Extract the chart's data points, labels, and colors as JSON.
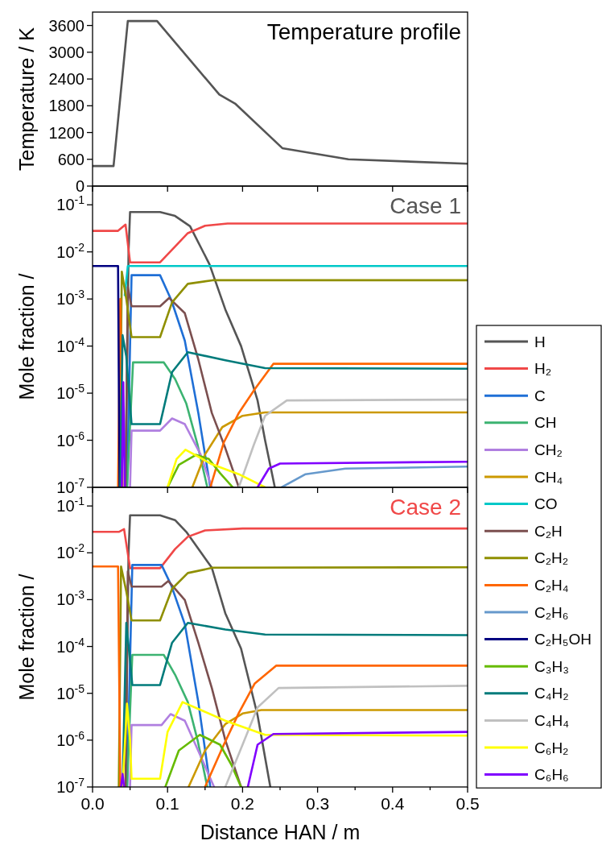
{
  "chart_data": [
    {
      "type": "line",
      "ylabel": "Temperature / K",
      "annotations": [
        "Temperature profile"
      ],
      "xlim": [
        0,
        0.5
      ],
      "xticks": [
        0,
        0.1,
        0.2,
        0.3,
        0.4,
        0.5
      ],
      "ylim": [
        0,
        3900
      ],
      "yticks": [
        0,
        600,
        1200,
        1800,
        2400,
        3000,
        3600
      ],
      "tick_labels": "y",
      "x": [
        0,
        0.028,
        0.047,
        0.086,
        0.169,
        0.19,
        0.253,
        0.341,
        0.5
      ],
      "series": [
        {
          "color": "#555555",
          "values": [
            450,
            450,
            3700,
            3700,
            2050,
            1850,
            850,
            600,
            500
          ]
        }
      ]
    },
    {
      "type": "line",
      "ylabel": "Mole fraction /",
      "annotations": [
        "Case 1"
      ],
      "log": "y",
      "legend": "right",
      "xlim": [
        0,
        0.5
      ],
      "xticks": [
        0,
        0.1,
        0.2,
        0.3,
        0.4,
        0.5
      ],
      "ylim": [
        1e-07,
        0.25
      ],
      "yticks": [
        {
          "value": 1e-07,
          "label": "10$^{-7}$"
        },
        {
          "value": 1e-06,
          "label": "10$^{-6}$"
        },
        {
          "value": 1e-05,
          "label": "10$^{-5}$"
        },
        {
          "value": 0.0001,
          "label": "10$^{-4}$"
        },
        {
          "value": 0.001,
          "label": "10$^{-3}$"
        },
        {
          "value": 0.01,
          "label": "10$^{-2}$"
        },
        {
          "value": 0.1,
          "label": "10$^{-1}$"
        }
      ],
      "tick_labels": "y",
      "series": [
        {
          "name": "H",
          "color": "#555555",
          "x": [
            0.044,
            0.048,
            0.05,
            0.09,
            0.11,
            0.13,
            0.156,
            0.177,
            0.198,
            0.22,
            0.23,
            0.243
          ],
          "values": [
            1e-07,
            0.01,
            0.07,
            0.07,
            0.058,
            0.035,
            0.0054,
            0.0006,
            0.0001,
            7e-06,
            1e-06,
            1e-07
          ]
        },
        {
          "name": "H₂",
          "color": "#f04848",
          "x": [
            0,
            0.034,
            0.044,
            0.05,
            0.09,
            0.11,
            0.127,
            0.15,
            0.18,
            0.5
          ],
          "values": [
            0.028,
            0.028,
            0.038,
            0.006,
            0.006,
            0.013,
            0.025,
            0.036,
            0.04,
            0.04
          ]
        },
        {
          "name": "C",
          "color": "#1f6fd6",
          "x": [
            0.046,
            0.052,
            0.09,
            0.105,
            0.123,
            0.141,
            0.157
          ],
          "values": [
            1e-07,
            0.0032,
            0.0032,
            0.00095,
            0.00013,
            3.8e-06,
            1e-07
          ]
        },
        {
          "name": "CH",
          "color": "#3cb371",
          "x": [
            0.046,
            0.054,
            0.095,
            0.11,
            0.125,
            0.14,
            0.153
          ],
          "values": [
            1e-07,
            4.5e-05,
            4.5e-05,
            2e-05,
            6e-06,
            8e-07,
            1e-07
          ]
        },
        {
          "name": "CH₂",
          "color": "#b07fe0",
          "x": [
            0.05,
            0.052,
            0.09,
            0.106,
            0.123,
            0.144,
            0.159
          ],
          "values": [
            1e-07,
            1.6e-06,
            1.6e-06,
            2.9e-06,
            2.2e-06,
            5e-07,
            1e-07
          ]
        },
        {
          "name": "CH₄",
          "color": "#cc9900",
          "x": [
            0.133,
            0.15,
            0.173,
            0.2,
            0.23,
            0.5
          ],
          "values": [
            1e-07,
            5e-07,
            1.9e-06,
            3.3e-06,
            3.9e-06,
            3.9e-06
          ]
        },
        {
          "name": "CO",
          "color": "#00c8c8",
          "x": [
            0.043,
            0.047,
            0.5
          ],
          "values": [
            0.0012,
            0.005,
            0.005
          ]
        },
        {
          "name": "C₂H",
          "color": "#7b4f4f",
          "x": [
            0.044,
            0.047,
            0.052,
            0.09,
            0.102,
            0.123,
            0.141,
            0.159,
            0.177,
            0.195
          ],
          "values": [
            1e-07,
            0.0018,
            0.0007,
            0.0007,
            0.00105,
            0.0005,
            5.2e-05,
            3.8e-06,
            6.8e-07,
            1e-07
          ]
        },
        {
          "name": "C₂H₂",
          "color": "#8f8f00",
          "x": [
            0.036,
            0.039,
            0.045,
            0.052,
            0.09,
            0.106,
            0.127,
            0.16,
            0.5
          ],
          "values": [
            1e-07,
            0.0038,
            0.001,
            0.000155,
            0.000155,
            0.00085,
            0.0021,
            0.0025,
            0.0025
          ]
        },
        {
          "name": "C₂H₄",
          "color": "#ff6600",
          "x": [
            0.034,
            0.037,
            0.04,
            0.1,
            0.157,
            0.175,
            0.195,
            0.216,
            0.241,
            0.5
          ],
          "values": [
            1e-07,
            0.001,
            1e-07,
            null,
            1e-07,
            9e-07,
            3.8e-06,
            1.2e-05,
            4.2e-05,
            4.2e-05
          ]
        },
        {
          "name": "C₂H₆",
          "color": "#6699cc",
          "x": [
            0.252,
            0.284,
            0.337,
            0.5
          ],
          "values": [
            1e-07,
            1.9e-07,
            2.5e-07,
            2.75e-07
          ]
        },
        {
          "name": "C₂H₅OH",
          "color": "#000080",
          "x": [
            0,
            0.034,
            0.036
          ],
          "values": [
            0.005,
            0.005,
            1e-07
          ]
        },
        {
          "name": "C₃H₃",
          "color": "#66bb00",
          "x": [
            0.1,
            0.115,
            0.138,
            0.155,
            0.17,
            0.187
          ],
          "values": [
            1e-07,
            3e-07,
            4.9e-07,
            4e-07,
            2e-07,
            1e-07
          ]
        },
        {
          "name": "C₄H₂",
          "color": "#007b7b",
          "x": [
            0.037,
            0.04,
            0.045,
            0.052,
            0.09,
            0.106,
            0.127,
            0.177,
            0.23,
            0.5
          ],
          "values": [
            1e-07,
            0.00017,
            6e-05,
            2.2e-06,
            2.2e-06,
            2.8e-05,
            7.4e-05,
            5e-05,
            3.4e-05,
            3.3e-05
          ]
        },
        {
          "name": "C₄H₄",
          "color": "#c0c0c0",
          "x": [
            0.195,
            0.215,
            0.23,
            0.259,
            0.5
          ],
          "values": [
            1e-07,
            8e-07,
            3.3e-06,
            7e-06,
            7.3e-06
          ]
        },
        {
          "name": "C₆H₂",
          "color": "#ffff00",
          "x": [
            0.1,
            0.112,
            0.124,
            0.159,
            0.195,
            0.23
          ],
          "values": [
            1e-07,
            4e-07,
            6.3e-07,
            3.1e-07,
            1.9e-07,
            1e-07
          ]
        },
        {
          "name": "C₆H₆",
          "color": "#8000ff",
          "x": [
            0.039,
            0.041,
            0.043,
            0.1,
            0.22,
            0.235,
            0.25,
            0.5
          ],
          "values": [
            1e-07,
            1.7e-05,
            1e-07,
            null,
            1e-07,
            2.5e-07,
            3.2e-07,
            3.5e-07
          ]
        }
      ]
    },
    {
      "type": "line",
      "ylabel": "Mole fraction /",
      "xlabel": "Distance HAN / m",
      "annotations": [
        "Case 2"
      ],
      "log": "y",
      "xlim": [
        0,
        0.5
      ],
      "xticks": [
        {
          "value": 0,
          "label": "0.0"
        },
        {
          "value": 0.05,
          "label": null
        },
        0.1,
        {
          "value": 0.15,
          "label": null
        },
        0.2,
        {
          "value": 0.25,
          "label": null
        },
        0.3,
        {
          "value": 0.35,
          "label": null
        },
        0.4,
        {
          "value": 0.45,
          "label": null
        },
        0.5
      ],
      "ylim": [
        1e-07,
        0.25
      ],
      "yticks": [
        {
          "value": 1e-07,
          "label": "10$^{-7}$"
        },
        {
          "value": 1e-06,
          "label": "10$^{-6}$"
        },
        {
          "value": 1e-05,
          "label": "10$^{-5}$"
        },
        {
          "value": 0.0001,
          "label": "10$^{-4}$"
        },
        {
          "value": 0.001,
          "label": "10$^{-3}$"
        },
        {
          "value": 0.01,
          "label": "10$^{-2}$"
        },
        {
          "value": 0.1,
          "label": "10$^{-1}$"
        }
      ],
      "series": [
        {
          "color": "#555555",
          "x": [
            0.044,
            0.048,
            0.05,
            0.09,
            0.11,
            0.125,
            0.159,
            0.177,
            0.198,
            0.22,
            0.237
          ],
          "values": [
            1e-07,
            0.01,
            0.063,
            0.063,
            0.05,
            0.028,
            0.0048,
            0.00051,
            9e-05,
            3.4e-06,
            1e-07
          ]
        },
        {
          "color": "#f04848",
          "x": [
            0,
            0.035,
            0.042,
            0.05,
            0.09,
            0.11,
            0.127,
            0.15,
            0.2,
            0.5
          ],
          "values": [
            0.028,
            0.028,
            0.032,
            0.0047,
            0.0047,
            0.012,
            0.022,
            0.03,
            0.033,
            0.033
          ]
        },
        {
          "color": "#1f6fd6",
          "x": [
            0.046,
            0.053,
            0.092,
            0.105,
            0.123,
            0.141,
            0.157
          ],
          "values": [
            1e-07,
            0.0055,
            0.0055,
            0.002,
            0.0003,
            6.5e-06,
            1e-07
          ]
        },
        {
          "color": "#3cb371",
          "x": [
            0.046,
            0.053,
            0.095,
            0.11,
            0.127,
            0.14,
            0.153
          ],
          "values": [
            1e-07,
            6.6e-05,
            6.6e-05,
            2.5e-05,
            6.5e-06,
            1e-06,
            1e-07
          ]
        },
        {
          "color": "#b07fe0",
          "x": [
            0.05,
            0.052,
            0.092,
            0.104,
            0.123,
            0.144,
            0.162
          ],
          "values": [
            1e-07,
            2.1e-06,
            2.1e-06,
            3.6e-06,
            2.6e-06,
            4.6e-07,
            1e-07
          ]
        },
        {
          "color": "#cc9900",
          "x": [
            0.128,
            0.15,
            0.177,
            0.2,
            0.225,
            0.5
          ],
          "values": [
            1e-07,
            6e-07,
            2.2e-06,
            3.7e-06,
            4.4e-06,
            4.4e-06
          ]
        },
        {
          "color": "#7b4f4f",
          "x": [
            0.044,
            0.047,
            0.052,
            0.092,
            0.101,
            0.123,
            0.141,
            0.159,
            0.177,
            0.198
          ],
          "values": [
            1e-07,
            0.004,
            0.0019,
            0.0019,
            0.0025,
            0.00098,
            0.00012,
            1.3e-05,
            1e-06,
            1e-07
          ]
        },
        {
          "color": "#8f8f00",
          "x": [
            0.035,
            0.038,
            0.045,
            0.052,
            0.09,
            0.106,
            0.127,
            0.16,
            0.5
          ],
          "values": [
            1e-07,
            0.0051,
            0.0015,
            0.00036,
            0.00036,
            0.0017,
            0.0037,
            0.0048,
            0.0049
          ]
        },
        {
          "color": "#ff6600",
          "x": [
            0,
            0.034,
            0.037,
            0.1,
            0.15,
            0.175,
            0.195,
            0.216,
            0.245,
            0.5
          ],
          "values": [
            0.0051,
            0.0051,
            1e-07,
            null,
            1e-07,
            8e-07,
            3.8e-06,
            1.6e-05,
            3.9e-05,
            3.9e-05
          ]
        },
        {
          "color": "#66bb00",
          "x": [
            0.097,
            0.115,
            0.143,
            0.17,
            0.185,
            0.198
          ],
          "values": [
            1e-07,
            6e-07,
            1.3e-06,
            8e-07,
            3e-07,
            1e-07
          ]
        },
        {
          "color": "#007b7b",
          "x": [
            0.04,
            0.045,
            0.05,
            0.053,
            0.09,
            0.106,
            0.127,
            0.177,
            0.23,
            0.5
          ],
          "values": [
            1e-07,
            0.00032,
            5e-05,
            1.5e-05,
            1.5e-05,
            0.00012,
            0.00032,
            0.00023,
            0.00018,
            0.000175
          ]
        },
        {
          "color": "#c0c0c0",
          "x": [
            0.177,
            0.2,
            0.22,
            0.248,
            0.5
          ],
          "values": [
            1e-07,
            8e-07,
            5e-06,
            1.3e-05,
            1.45e-05
          ]
        },
        {
          "color": "#ffff00",
          "x": [
            0.04,
            0.046,
            0.05,
            0.052,
            0.09,
            0.1,
            0.12,
            0.177,
            0.23,
            0.5
          ],
          "values": [
            1e-07,
            6e-06,
            1e-06,
            1.5e-07,
            1.5e-07,
            1.5e-06,
            6.5e-06,
            2.6e-06,
            1.3e-06,
            1.25e-06
          ]
        },
        {
          "color": "#8000ff",
          "x": [
            0.038,
            0.04,
            0.042,
            0.1,
            0.207,
            0.22,
            0.241,
            0.5
          ],
          "values": [
            1e-07,
            1.9e-07,
            1e-07,
            null,
            1e-07,
            8e-07,
            1.35e-06,
            1.5e-06
          ]
        }
      ]
    }
  ]
}
